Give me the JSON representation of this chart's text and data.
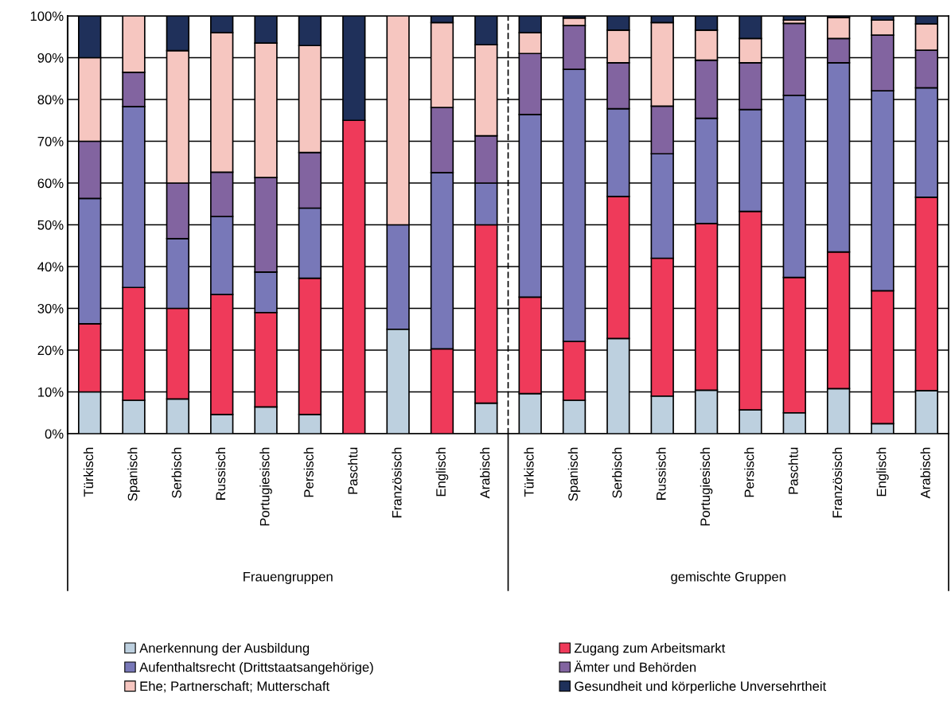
{
  "chart_data": {
    "type": "bar",
    "stacked": true,
    "categories": [
      "Türkisch",
      "Spanisch",
      "Serbisch",
      "Russisch",
      "Portugiesisch",
      "Persisch",
      "Paschtu",
      "Französisch",
      "Englisch",
      "Arabisch",
      "Türkisch",
      "Spanisch",
      "Serbisch",
      "Russisch",
      "Portugiesisch",
      "Persisch",
      "Paschtu",
      "Französisch",
      "Englisch",
      "Arabisch"
    ],
    "series": [
      {
        "name": "Anerkennung der Ausbildung",
        "color": "#bdd0df",
        "values": [
          10,
          8,
          8.3,
          4.6,
          6.4,
          4.6,
          0,
          25,
          0,
          7.3,
          9.6,
          8,
          22.8,
          9,
          10.4,
          5.7,
          5,
          10.8,
          2.4,
          10.3
        ]
      },
      {
        "name": "Zugang zum Arbeitsmarkt",
        "color": "#ef3a5a",
        "values": [
          16.3,
          27,
          21.7,
          28.7,
          22.6,
          32.6,
          75,
          0,
          20.3,
          42.7,
          23.1,
          14.1,
          34,
          33,
          39.9,
          47.5,
          32.4,
          32.7,
          31.8,
          46.3
        ]
      },
      {
        "name": "Aufenthaltsrecht (Drittstaatsangehörige)",
        "color": "#7878b8",
        "values": [
          30,
          43.3,
          16.7,
          18.7,
          9.7,
          16.8,
          0,
          25,
          42.2,
          10,
          43.7,
          65.1,
          21,
          25,
          25.2,
          24.4,
          43.6,
          45.3,
          47.9,
          26.2
        ]
      },
      {
        "name": "Ämter und Behörden",
        "color": "#8264a0",
        "values": [
          13.7,
          8.2,
          13.3,
          10.6,
          22.6,
          13.3,
          0,
          0,
          15.6,
          11.3,
          14.6,
          10.5,
          11,
          11.4,
          13.9,
          11.2,
          17.2,
          5.8,
          13.3,
          9
        ]
      },
      {
        "name": "Ehe; Partnerschaft; Mutterschaft",
        "color": "#f6c6c0",
        "values": [
          20,
          13.5,
          31.7,
          33.4,
          32.2,
          25.6,
          0,
          50,
          20.3,
          21.8,
          5,
          1.8,
          7.8,
          20,
          7.2,
          5.8,
          0.8,
          5,
          3.6,
          6.3
        ]
      },
      {
        "name": "Gesundheit und körperliche Unversehrtheit",
        "color": "#1f305a",
        "values": [
          10,
          0,
          8.3,
          4,
          6.5,
          7.1,
          25,
          0,
          1.6,
          6.9,
          4,
          0.5,
          3.4,
          1.6,
          3.4,
          5.4,
          1,
          0.4,
          1,
          1.9
        ]
      }
    ],
    "ylim": [
      0,
      100
    ],
    "yticks": [
      {
        "value": 0,
        "label": "0%"
      },
      {
        "value": 10,
        "label": "10%"
      },
      {
        "value": 20,
        "label": "20%"
      },
      {
        "value": 30,
        "label": "30%"
      },
      {
        "value": 40,
        "label": "40%"
      },
      {
        "value": 50,
        "label": "50%"
      },
      {
        "value": 60,
        "label": "60%"
      },
      {
        "value": 70,
        "label": "70%"
      },
      {
        "value": 80,
        "label": "80%"
      },
      {
        "value": 90,
        "label": "90%"
      },
      {
        "value": 100,
        "label": "100%"
      }
    ],
    "grid": "y",
    "annotations": [
      "Frauengruppen",
      "gemischte Gruppen"
    ],
    "legend": "bottom"
  }
}
